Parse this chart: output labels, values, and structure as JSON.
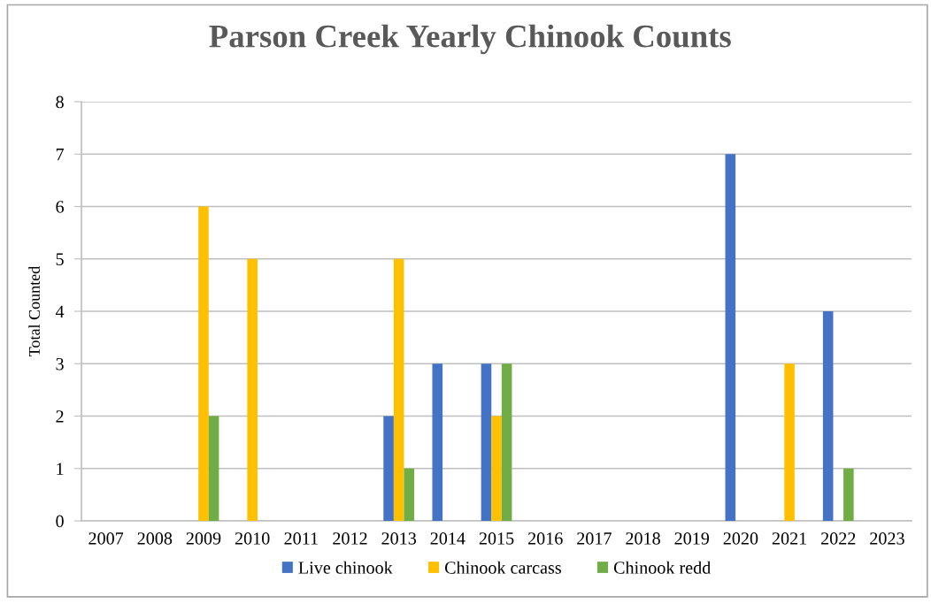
{
  "chart_data": {
    "type": "bar",
    "title": "Parson Creek Yearly Chinook Counts",
    "ylabel": "Total Counted",
    "categories": [
      "2007",
      "2008",
      "2009",
      "2010",
      "2011",
      "2012",
      "2013",
      "2014",
      "2015",
      "2016",
      "2017",
      "2018",
      "2019",
      "2020",
      "2021",
      "2022",
      "2023"
    ],
    "series": [
      {
        "name": "Live chinook",
        "color": "#4472c4",
        "values": [
          null,
          null,
          null,
          null,
          null,
          null,
          2,
          3,
          3,
          null,
          null,
          null,
          null,
          7,
          null,
          4,
          null
        ]
      },
      {
        "name": "Chinook carcass",
        "color": "#ffc000",
        "values": [
          null,
          null,
          6,
          5,
          null,
          null,
          5,
          null,
          2,
          null,
          null,
          null,
          null,
          null,
          3,
          null,
          null
        ]
      },
      {
        "name": "Chinook redd",
        "color": "#70ad47",
        "values": [
          null,
          null,
          2,
          null,
          null,
          null,
          1,
          null,
          3,
          null,
          null,
          null,
          null,
          null,
          null,
          1,
          null
        ]
      }
    ],
    "ylim": [
      0,
      8
    ],
    "yticks": [
      0,
      1,
      2,
      3,
      4,
      5,
      6,
      7,
      8
    ],
    "grid": "y",
    "legend": "bottom"
  }
}
